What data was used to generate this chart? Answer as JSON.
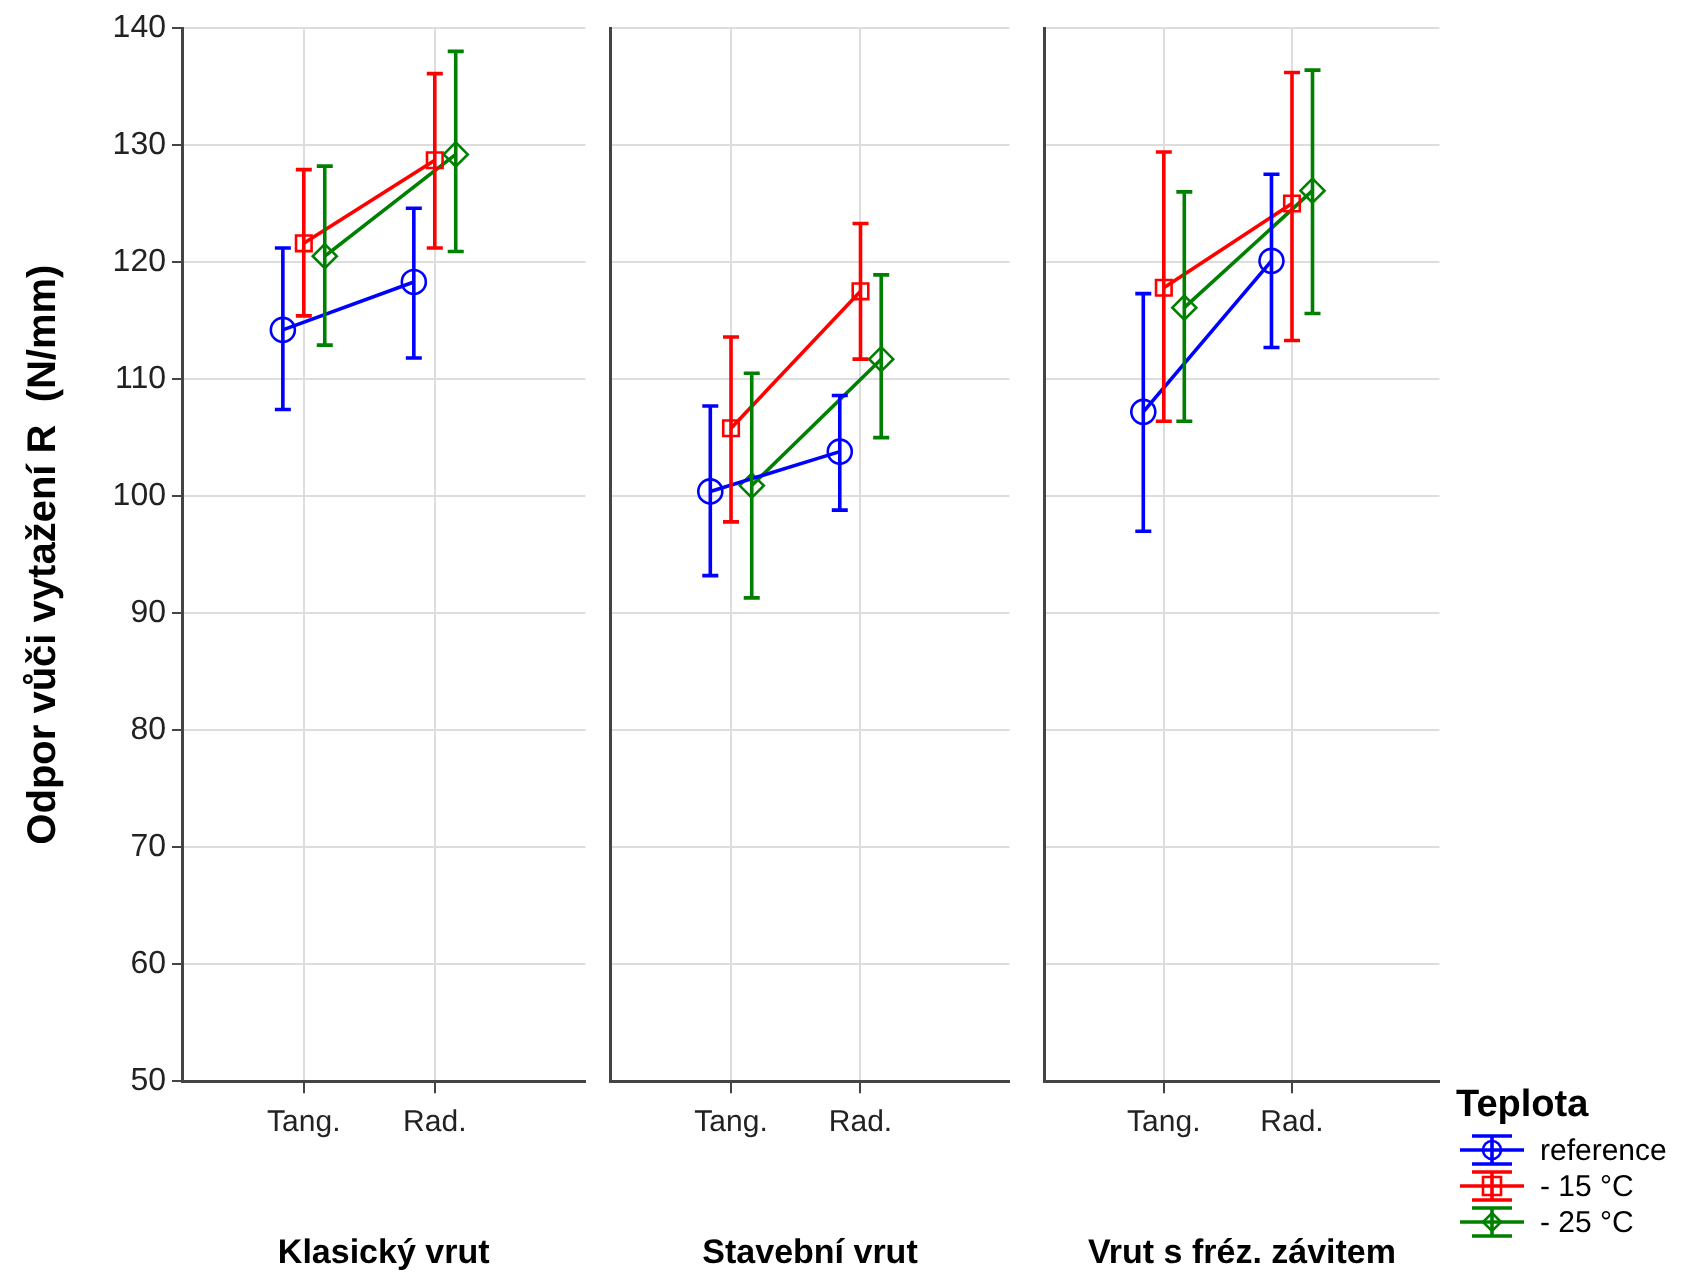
{
  "chart_data": [
    {
      "type": "line",
      "categories": [
        "Tang.",
        "Rad."
      ],
      "xlabel": "Klasický vrut",
      "ylabel": "Odpor vůči vytažení R  (N/mm)",
      "ylim": [
        50,
        140
      ],
      "yticks": [
        50,
        60,
        70,
        80,
        90,
        100,
        110,
        120,
        130,
        140
      ],
      "grid": true,
      "legend": false,
      "series": [
        {
          "color": "#0000ff",
          "marker": "circle",
          "values": [
            114.2,
            118.3
          ],
          "errors": [
            [
              107.4,
              121.2
            ],
            [
              111.8,
              124.6
            ]
          ]
        },
        {
          "color": "#ff0000",
          "marker": "square",
          "values": [
            121.6,
            128.7
          ],
          "errors": [
            [
              115.4,
              127.9
            ],
            [
              121.2,
              136.1
            ]
          ]
        },
        {
          "color": "#008000",
          "marker": "diamond",
          "values": [
            120.5,
            129.2
          ],
          "errors": [
            [
              112.9,
              128.2
            ],
            [
              120.9,
              138
            ]
          ]
        }
      ]
    },
    {
      "type": "line",
      "categories": [
        "Tang.",
        "Rad."
      ],
      "xlabel": "Stavební vrut",
      "ylim": [
        50,
        140
      ],
      "yticks": [
        50,
        60,
        70,
        80,
        90,
        100,
        110,
        120,
        130,
        140
      ],
      "grid": true,
      "legend": false,
      "tick_labels": "x",
      "series": [
        {
          "color": "#0000ff",
          "marker": "circle",
          "values": [
            100.4,
            103.8
          ],
          "errors": [
            [
              93.2,
              107.7
            ],
            [
              98.8,
              108.6
            ]
          ]
        },
        {
          "color": "#ff0000",
          "marker": "square",
          "values": [
            105.8,
            117.5
          ],
          "errors": [
            [
              97.8,
              113.6
            ],
            [
              111.7,
              123.3
            ]
          ]
        },
        {
          "color": "#008000",
          "marker": "diamond",
          "values": [
            100.9,
            111.7
          ],
          "errors": [
            [
              91.3,
              110.5
            ],
            [
              105,
              118.9
            ]
          ]
        }
      ]
    },
    {
      "type": "line",
      "categories": [
        "Tang.",
        "Rad."
      ],
      "xlabel": "Vrut s fréz. závitem",
      "ylim": [
        50,
        140
      ],
      "yticks": [
        50,
        60,
        70,
        80,
        90,
        100,
        110,
        120,
        130,
        140
      ],
      "grid": true,
      "legend": "bottom right",
      "legend_title": "Teplota",
      "tick_labels": "x",
      "series": [
        {
          "name": "reference",
          "color": "#0000ff",
          "marker": "circle",
          "values": [
            107.2,
            120.1
          ],
          "errors": [
            [
              97,
              117.3
            ],
            [
              112.7,
              127.5
            ]
          ]
        },
        {
          "name": "- 15 °C",
          "color": "#ff0000",
          "marker": "square",
          "values": [
            117.8,
            125
          ],
          "errors": [
            [
              106.4,
              129.4
            ],
            [
              113.3,
              136.2
            ]
          ]
        },
        {
          "name": "- 25 °C",
          "color": "#008000",
          "marker": "diamond",
          "values": [
            116.1,
            126.1
          ],
          "errors": [
            [
              106.4,
              126
            ],
            [
              115.6,
              136.4
            ]
          ]
        }
      ]
    }
  ]
}
